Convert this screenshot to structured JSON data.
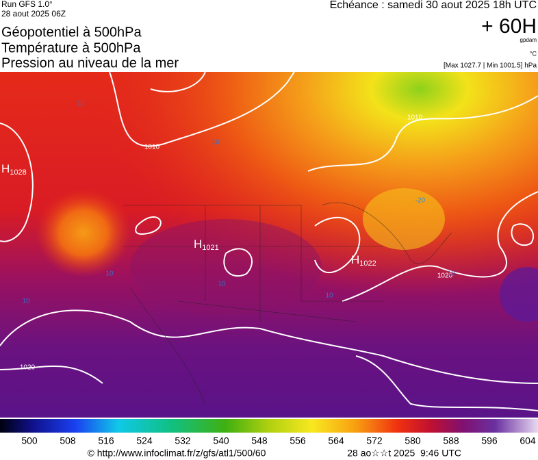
{
  "header": {
    "run": "Run GFS 1.0°",
    "run_date": "28 aout 2025 06Z",
    "titles": [
      "Géopotentiel à 500hPa",
      "Température à 500hPa",
      "Pression au niveau de la mer"
    ],
    "echeance": "Echéance : samedi 30 aout 2025 18h UTC",
    "lead": "+ 60H",
    "unit_geo": "gpdam",
    "unit_temp": "°C",
    "pressure_range": "[Max 1027.7 | Min 1001.5] hPa"
  },
  "map_labels": [
    {
      "letter": "H",
      "value": "1028"
    },
    {
      "text": "1010"
    },
    {
      "text": "10"
    },
    {
      "letter": "H",
      "value": "1021"
    },
    {
      "text": "10"
    },
    {
      "text": "10"
    },
    {
      "text": "10"
    },
    {
      "letter": "H",
      "value": "1022"
    },
    {
      "text": "-20"
    },
    {
      "text": "1010"
    },
    {
      "text": "1020"
    },
    {
      "text": "10"
    },
    {
      "text": "1020"
    },
    {
      "text": "10"
    },
    {
      "text": "10"
    }
  ],
  "colorbar": {
    "labels": [
      "500",
      "508",
      "516",
      "524",
      "532",
      "540",
      "548",
      "556",
      "564",
      "572",
      "580",
      "588",
      "596",
      "604"
    ]
  },
  "footer": {
    "credit": "© http://www.infoclimat.fr/z/gfs/atl1/500/60",
    "generated": "28 ao☆☆t 2025  9:46 UTC"
  }
}
